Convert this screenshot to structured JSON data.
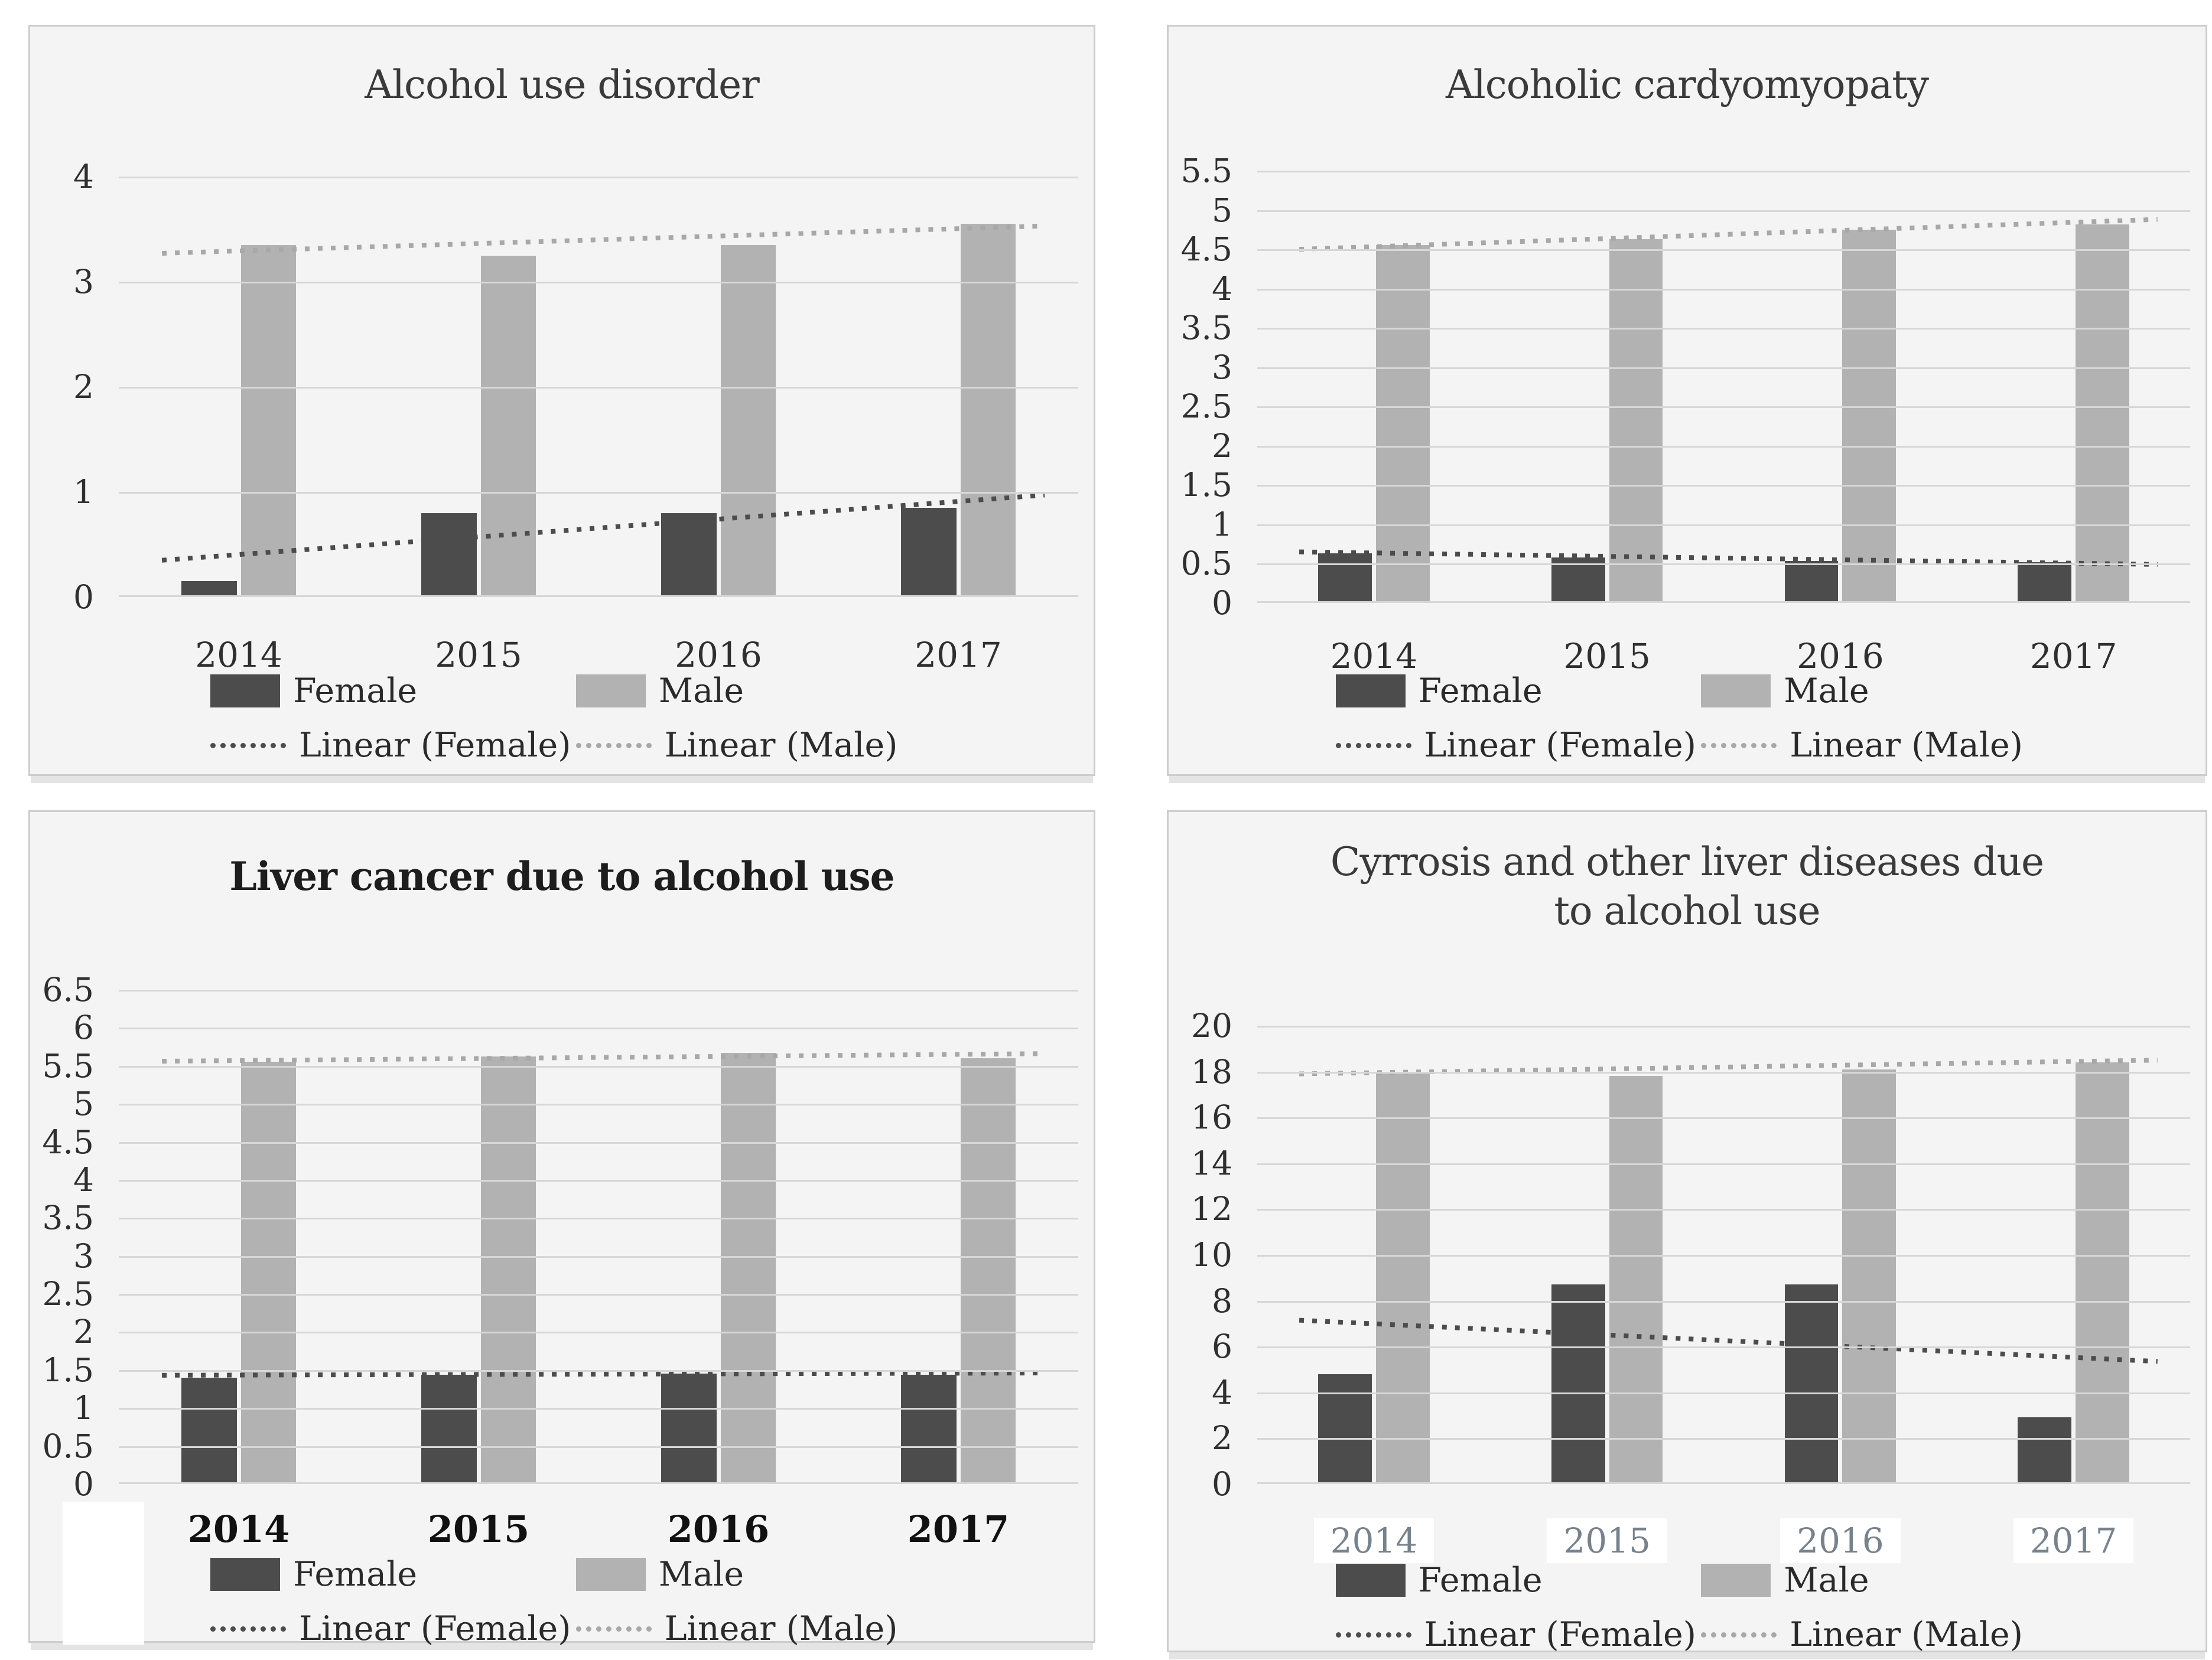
{
  "colors": {
    "female": "#4c4c4c",
    "male": "#b2b2b2",
    "trend_female": "#4c4c4c",
    "trend_male": "#a8a8a8",
    "panel_background": "#f4f4f4",
    "gridline": "#d7d7d7",
    "chart4_xlabel_text": "#76828c"
  },
  "chart_data": [
    {
      "type": "bar",
      "title": "Alcohol use disorder",
      "categories": [
        "2014",
        "2015",
        "2016",
        "2017"
      ],
      "series": [
        {
          "name": "Female",
          "values": [
            0.15,
            0.8,
            0.8,
            0.85
          ]
        },
        {
          "name": "Male",
          "values": [
            3.35,
            3.25,
            3.35,
            3.55
          ]
        }
      ],
      "trendlines": [
        {
          "name": "Linear (Female)",
          "start": 0.35,
          "end": 0.97
        },
        {
          "name": "Linear (Male)",
          "start": 3.27,
          "end": 3.53
        }
      ],
      "axis": {
        "min": 0,
        "max": 4,
        "step": 1,
        "ticks": [
          "4",
          "3",
          "2",
          "1",
          "0"
        ]
      },
      "grid": true,
      "legend_position": "bottom"
    },
    {
      "type": "bar",
      "title": "Alcoholic cardyomyopaty",
      "categories": [
        "2014",
        "2015",
        "2016",
        "2017"
      ],
      "series": [
        {
          "name": "Female",
          "values": [
            0.63,
            0.58,
            0.53,
            0.52
          ]
        },
        {
          "name": "Male",
          "values": [
            4.55,
            4.63,
            4.75,
            4.82
          ]
        }
      ],
      "trendlines": [
        {
          "name": "Linear (Female)",
          "start": 0.65,
          "end": 0.49
        },
        {
          "name": "Linear (Male)",
          "start": 4.5,
          "end": 4.88
        }
      ],
      "axis": {
        "min": 0,
        "max": 5.5,
        "step": 0.5,
        "ticks": [
          "5.5",
          "5",
          "4.5",
          "4",
          "3.5",
          "3",
          "2.5",
          "2",
          "1.5",
          "1",
          "0.5",
          "0"
        ]
      },
      "grid": true,
      "legend_position": "bottom"
    },
    {
      "type": "bar",
      "title": "Liver cancer due to alcohol use",
      "categories": [
        "2014",
        "2015",
        "2016",
        "2017"
      ],
      "series": [
        {
          "name": "Female",
          "values": [
            1.4,
            1.44,
            1.45,
            1.44
          ]
        },
        {
          "name": "Male",
          "values": [
            5.55,
            5.62,
            5.67,
            5.6
          ]
        }
      ],
      "trendlines": [
        {
          "name": "Linear (Female)",
          "start": 1.43,
          "end": 1.46
        },
        {
          "name": "Linear (Male)",
          "start": 5.56,
          "end": 5.66
        }
      ],
      "axis": {
        "min": 0,
        "max": 6.5,
        "step": 0.5,
        "ticks": [
          "6.5",
          "6",
          "5.5",
          "5",
          "4.5",
          "4",
          "3.5",
          "3",
          "2.5",
          "2",
          "1.5",
          "1",
          "0.5",
          "0"
        ]
      },
      "grid": true,
      "legend_position": "bottom"
    },
    {
      "type": "bar",
      "title": "Cyrrosis and other liver diseases due to alcohol use",
      "categories": [
        "2014",
        "2015",
        "2016",
        "2017"
      ],
      "series": [
        {
          "name": "Female",
          "values": [
            4.8,
            8.7,
            8.7,
            2.9
          ]
        },
        {
          "name": "Male",
          "values": [
            18.0,
            17.8,
            18.1,
            18.4
          ]
        }
      ],
      "trendlines": [
        {
          "name": "Linear (Female)",
          "start": 7.15,
          "end": 5.35
        },
        {
          "name": "Linear (Male)",
          "start": 17.9,
          "end": 18.5
        }
      ],
      "axis": {
        "min": 0,
        "max": 20,
        "step": 2,
        "ticks": [
          "20",
          "18",
          "16",
          "14",
          "12",
          "10",
          "8",
          "6",
          "4",
          "2",
          "0"
        ]
      },
      "grid": true,
      "legend_position": "bottom"
    }
  ]
}
